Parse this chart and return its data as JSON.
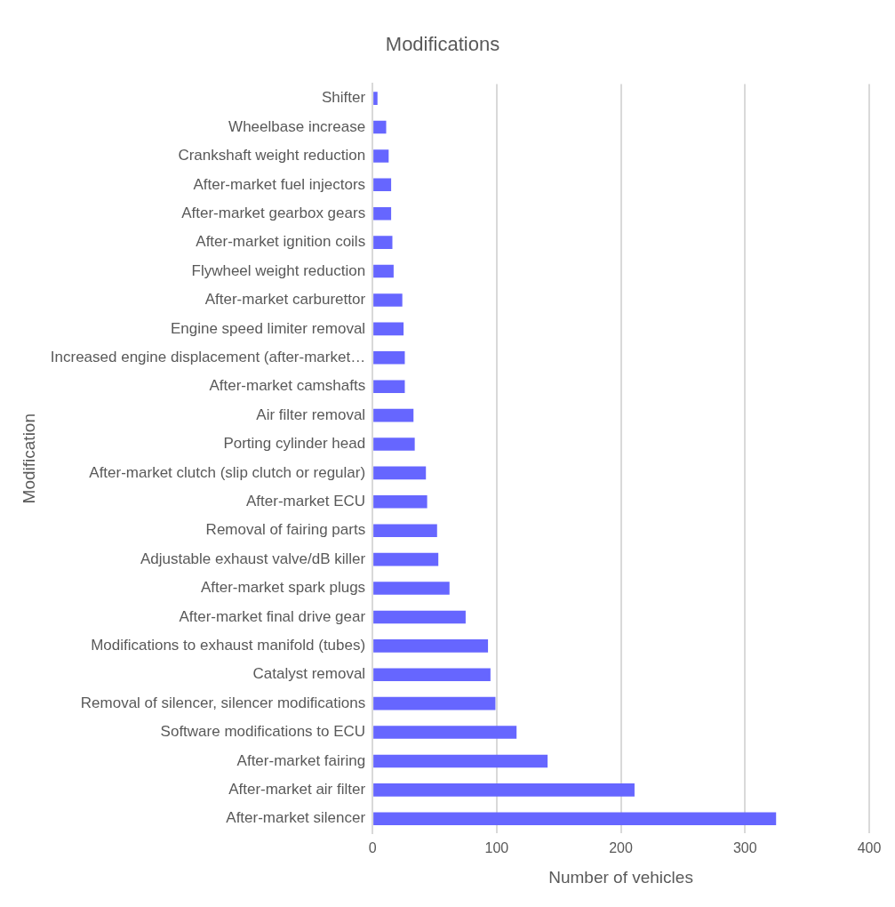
{
  "chart_data": {
    "type": "bar",
    "orientation": "horizontal",
    "title": "Modifications",
    "xlabel": "Number of vehicles",
    "ylabel": "Modification",
    "categories": [
      "Shifter",
      "Wheelbase increase",
      "Crankshaft weight reduction",
      "After-market fuel injectors",
      "After-market gearbox gears",
      "After-market ignition coils",
      "Flywheel weight reduction",
      "After-market carburettor",
      "Engine speed limiter removal",
      "Increased engine displacement (after-market…",
      "After-market camshafts",
      "Air filter removal",
      "Porting cylinder head",
      "After-market clutch (slip clutch or regular)",
      "After-market ECU",
      "Removal of fairing parts",
      "Adjustable exhaust valve/dB killer",
      "After-market spark plugs",
      "After-market final drive gear",
      "Modifications to exhaust manifold (tubes)",
      "Catalyst removal",
      "Removal of silencer, silencer modifications",
      "Software modifications to ECU",
      "After-market fairing",
      "After-market air filter",
      "After-market silencer"
    ],
    "values": [
      4,
      11,
      13,
      15,
      15,
      16,
      17,
      24,
      25,
      26,
      26,
      33,
      34,
      43,
      44,
      52,
      53,
      62,
      75,
      93,
      95,
      99,
      116,
      141,
      211,
      325
    ],
    "color": "#6666ff",
    "xlim": [
      0,
      400
    ],
    "xticks": [
      0,
      100,
      200,
      300,
      400
    ],
    "grid": "x",
    "legend": false
  }
}
